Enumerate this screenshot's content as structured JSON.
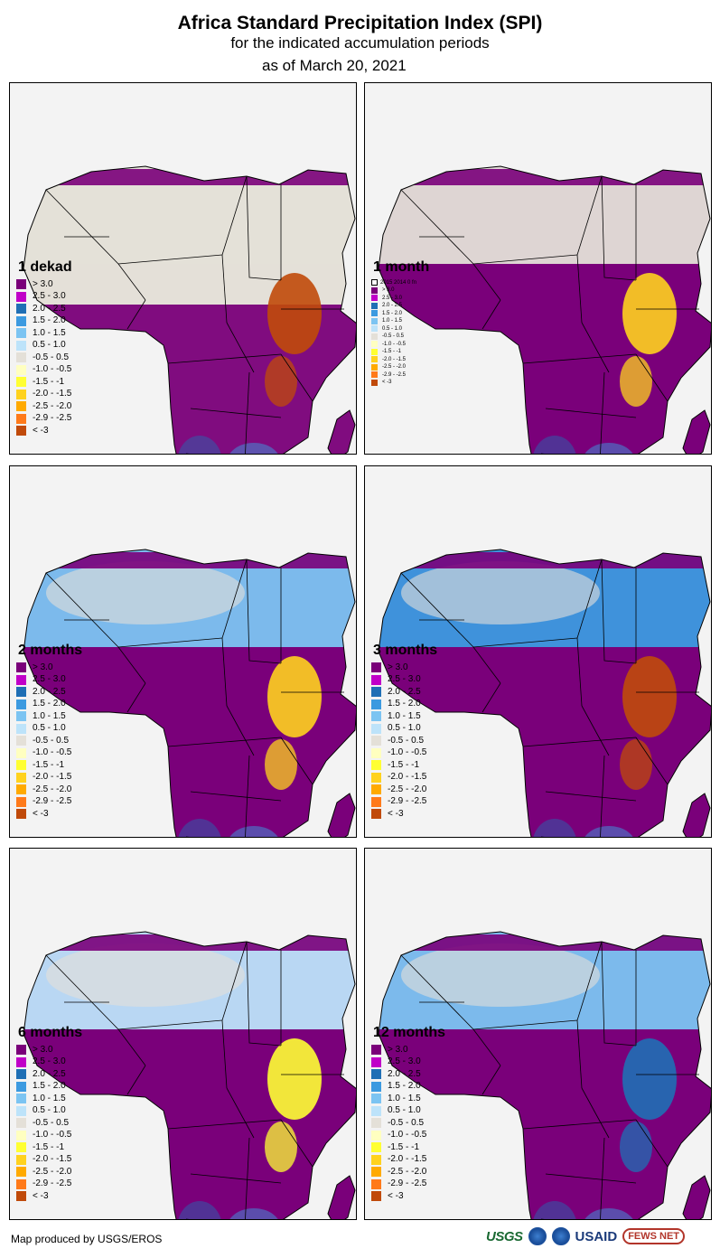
{
  "header": {
    "title": "Africa Standard Precipitation Index (SPI)",
    "subtitle": "for the indicated accumulation periods",
    "date": "as of March 20, 2021"
  },
  "colors": {
    "gt3": "#7a007a",
    "c25_30": "#c000c8",
    "c20_25": "#1f6fb5",
    "c15_20": "#3c9ae0",
    "c10_15": "#7cc4f2",
    "c05_10": "#bde3fa",
    "neutral": "#e4e0d8",
    "cm10_05": "#ffffc0",
    "cm15_1": "#ffff33",
    "cm20_15": "#ffd21e",
    "cm25_20": "#ffaa00",
    "cm29_25": "#ff7a1a",
    "lt3": "#c04a0a",
    "ocean": "#f3f3f3",
    "border": "#000000"
  },
  "legend_labels": {
    "gt3": "> 3.0",
    "c25_30": "2.5 - 3.0",
    "c20_25": "2.0 - 2.5",
    "c15_20": "1.5 - 2.0",
    "c10_15": "1.0 - 1.5",
    "c05_10": "0.5 - 1.0",
    "neutral": "-0.5 - 0.5",
    "cm10_05": "-1.0 - -0.5",
    "cm15_1": "-1.5 - -1",
    "cm20_15": "-2.0 - -1.5",
    "cm25_20": "-2.5 - -2.0",
    "cm29_25": "-2.9 - -2.5",
    "lt3": "< -3"
  },
  "panels": [
    {
      "label": "1 dekad",
      "dominant": "neutral",
      "north": "neutral",
      "south": "gt3",
      "east": "lt3"
    },
    {
      "label": "1 month",
      "dominant": "gt3",
      "north": "neutral",
      "south": "gt3",
      "east": "cm20_15",
      "note": "2015  2014  0  fn"
    },
    {
      "label": "2 months",
      "dominant": "gt3",
      "north": "c10_15",
      "south": "gt3",
      "east": "cm20_15"
    },
    {
      "label": "3 months",
      "dominant": "gt3",
      "north": "c15_20",
      "south": "gt3",
      "east": "lt3"
    },
    {
      "label": "6 months",
      "dominant": "gt3",
      "north": "c05_10",
      "south": "gt3",
      "east": "cm15_1"
    },
    {
      "label": "12 months",
      "dominant": "gt3",
      "north": "c10_15",
      "south": "gt3",
      "east": "c20_25"
    }
  ],
  "footer": {
    "credit": "Map produced by USGS/EROS",
    "logos": {
      "usgs": "USGS",
      "usaid": "USAID",
      "fews": "FEWS NET"
    }
  }
}
